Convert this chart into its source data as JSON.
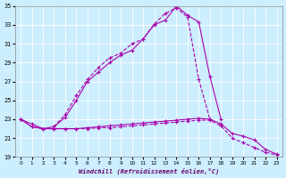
{
  "xlabel": "Windchill (Refroidissement éolien,°C)",
  "background_color": "#cceeff",
  "grid_color": "#ffffff",
  "line_color": "#aa00aa",
  "xlim": [
    -0.5,
    23.5
  ],
  "ylim": [
    19,
    35
  ],
  "xticks": [
    0,
    1,
    2,
    3,
    4,
    5,
    6,
    7,
    8,
    9,
    10,
    11,
    12,
    13,
    14,
    15,
    16,
    17,
    18,
    19,
    20,
    21,
    22,
    23
  ],
  "yticks": [
    19,
    21,
    23,
    25,
    27,
    29,
    31,
    33,
    35
  ],
  "curve_upper1_x": [
    0,
    1,
    2,
    3,
    4,
    5,
    6,
    7,
    8,
    9,
    10,
    11,
    12,
    13,
    14,
    15,
    16,
    17,
    18
  ],
  "curve_upper1_y": [
    23,
    22.5,
    22.0,
    22.2,
    23.2,
    25.0,
    27.0,
    28.0,
    29.0,
    29.8,
    30.3,
    31.5,
    33.0,
    33.5,
    35.0,
    34.0,
    33.3,
    27.5,
    23.0
  ],
  "curve_upper2_x": [
    3,
    4,
    5,
    6,
    7,
    8,
    9,
    10,
    11,
    12,
    13,
    14,
    15,
    16,
    17
  ],
  "curve_upper2_y": [
    22.2,
    23.5,
    25.5,
    27.2,
    28.5,
    29.5,
    30.0,
    31.0,
    31.5,
    33.1,
    34.2,
    34.8,
    33.8,
    27.2,
    23.0
  ],
  "curve_lower1_x": [
    0,
    1,
    2,
    3,
    4,
    5,
    6,
    7,
    8,
    9,
    10,
    11,
    12,
    13,
    14,
    15,
    16,
    17,
    18,
    19,
    20,
    21,
    22,
    23
  ],
  "curve_lower1_y": [
    23.0,
    22.2,
    22.0,
    22.0,
    22.0,
    22.0,
    22.1,
    22.2,
    22.3,
    22.4,
    22.5,
    22.6,
    22.7,
    22.8,
    22.9,
    23.0,
    23.1,
    23.0,
    22.5,
    21.5,
    21.2,
    20.8,
    19.8,
    19.3
  ],
  "curve_lower2_x": [
    0,
    1,
    2,
    3,
    4,
    5,
    6,
    7,
    8,
    9,
    10,
    11,
    12,
    13,
    14,
    15,
    16,
    17,
    18,
    19,
    20,
    21,
    22,
    23
  ],
  "curve_lower2_y": [
    23.0,
    22.2,
    22.0,
    22.0,
    22.0,
    22.0,
    22.0,
    22.1,
    22.1,
    22.2,
    22.3,
    22.4,
    22.5,
    22.6,
    22.7,
    22.8,
    22.9,
    22.9,
    22.3,
    21.0,
    20.5,
    20.0,
    19.5,
    19.2
  ]
}
